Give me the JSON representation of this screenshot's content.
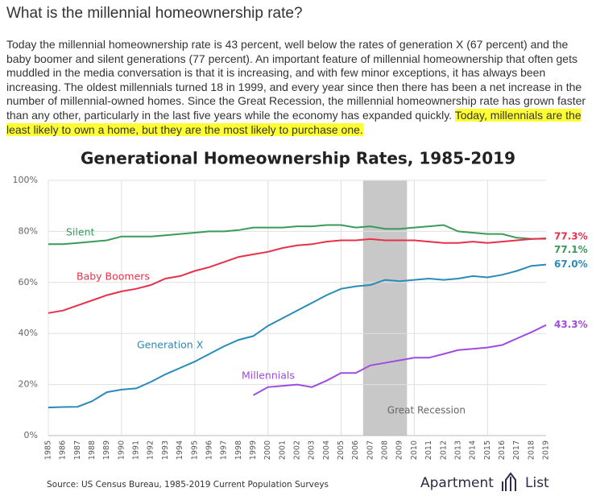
{
  "heading": "What is the millennial homeownership rate?",
  "paragraph": {
    "text": "Today the millennial homeownership rate is 43 percent, well below the rates of generation X (67 percent) and the baby boomer and silent generations (77 percent). An important feature of millennial homeownership that often gets muddled in the media conversation is that it is increasing, and with few minor exceptions, it has always been increasing. The oldest millennials turned 18 in 1999, and every year since then there has been a net increase in the number of millennial-owned homes. Since the Great Recession, the millennial homeownership rate has grown faster than any other, particularly in the last five years while the economy has expanded quickly. ",
    "highlight": "Today, millennials are the least likely to own a home, but they are the most likely to purchase one."
  },
  "chart_data": {
    "type": "line",
    "title": "Generational Homeownership Rates, 1985-2019",
    "source": "Source: US Census Bureau, 1985-2019 Current Population Surveys",
    "logo": [
      "Apartment",
      "List"
    ],
    "x": [
      1985,
      1986,
      1987,
      1988,
      1989,
      1990,
      1991,
      1992,
      1993,
      1994,
      1995,
      1996,
      1997,
      1998,
      1999,
      2000,
      2001,
      2002,
      2003,
      2004,
      2005,
      2006,
      2007,
      2008,
      2009,
      2010,
      2011,
      2012,
      2013,
      2014,
      2015,
      2016,
      2017,
      2018,
      2019
    ],
    "xlim": [
      1985,
      2019
    ],
    "xticks": [
      1985,
      1986,
      1987,
      1988,
      1989,
      1990,
      1991,
      1992,
      1993,
      1994,
      1995,
      1996,
      1997,
      1998,
      1999,
      2000,
      2001,
      2002,
      2003,
      2004,
      2005,
      2006,
      2007,
      2008,
      2009,
      2010,
      2011,
      2012,
      2013,
      2014,
      2015,
      2016,
      2017,
      2018,
      2019
    ],
    "ylim": [
      0,
      100
    ],
    "yticks": [
      {
        "value": 0,
        "label": "0%"
      },
      {
        "value": 20,
        "label": "20%"
      },
      {
        "value": 40,
        "label": "40%"
      },
      {
        "value": 60,
        "label": "60%"
      },
      {
        "value": 80,
        "label": "80%"
      },
      {
        "value": 100,
        "label": "100%"
      }
    ],
    "grid": true,
    "shaded_region": {
      "label": "Great Recession",
      "start": 2007,
      "end": 2009,
      "color": "#c8c8c8"
    },
    "series": [
      {
        "name": "Silent",
        "color": "#3a9a5b",
        "values": [
          75,
          75,
          75.5,
          76,
          76.5,
          78,
          78,
          78,
          78.5,
          79,
          79.5,
          80,
          80,
          80.5,
          81.5,
          81.5,
          81.5,
          82,
          82,
          82.5,
          82.5,
          81.5,
          82,
          81,
          81,
          81.5,
          82,
          82.5,
          80,
          79.5,
          79,
          79,
          77.5,
          77.1,
          77.1
        ],
        "value_labels": [
          null,
          null,
          null,
          null,
          null,
          null,
          null,
          null,
          null,
          null,
          null,
          null,
          null,
          null,
          null,
          null,
          null,
          null,
          null,
          null,
          null,
          null,
          null,
          null,
          null,
          null,
          null,
          null,
          null,
          null,
          null,
          null,
          null,
          null,
          "77.1%"
        ]
      },
      {
        "name": "Baby Boomers",
        "color": "#e8304a",
        "values": [
          48,
          49,
          51,
          53,
          55,
          56.5,
          57.5,
          59,
          61.5,
          62.5,
          64.5,
          66,
          68,
          70,
          71,
          72,
          73.5,
          74.5,
          75,
          76,
          76.5,
          76.5,
          77,
          76.5,
          76.5,
          76.5,
          76,
          75.5,
          75.5,
          76,
          75.5,
          76,
          76.5,
          77,
          77.3
        ],
        "value_labels": [
          null,
          null,
          null,
          null,
          null,
          null,
          null,
          null,
          null,
          null,
          null,
          null,
          null,
          null,
          null,
          null,
          null,
          null,
          null,
          null,
          null,
          null,
          null,
          null,
          null,
          null,
          null,
          null,
          null,
          null,
          null,
          null,
          null,
          null,
          "77.3%"
        ]
      },
      {
        "name": "Generation X",
        "color": "#2a8ab8",
        "values": [
          11,
          11.2,
          11.3,
          13.5,
          17,
          18,
          18.5,
          21,
          24,
          26.5,
          29,
          32,
          35,
          37.5,
          39,
          43,
          46,
          49,
          52,
          55,
          57.5,
          58.5,
          59,
          61,
          60.5,
          61,
          61.5,
          61,
          61.5,
          62.5,
          62,
          63,
          64.5,
          66.5,
          67
        ],
        "value_labels": [
          null,
          null,
          null,
          null,
          null,
          null,
          null,
          null,
          null,
          null,
          null,
          null,
          null,
          null,
          null,
          null,
          null,
          null,
          null,
          null,
          null,
          null,
          null,
          null,
          null,
          null,
          null,
          null,
          null,
          null,
          null,
          null,
          null,
          null,
          "67.0%"
        ]
      },
      {
        "name": "Millennials",
        "color": "#a04be0",
        "values": [
          null,
          null,
          null,
          null,
          null,
          null,
          null,
          null,
          null,
          null,
          null,
          null,
          null,
          null,
          15.8,
          19,
          19.5,
          20,
          19,
          21.5,
          24.5,
          24.5,
          27.5,
          28.5,
          29.5,
          30.5,
          30.5,
          32,
          33.5,
          34,
          34.5,
          35.5,
          38,
          40.5,
          43.3
        ],
        "value_labels": [
          null,
          null,
          null,
          null,
          null,
          null,
          null,
          null,
          null,
          null,
          null,
          null,
          null,
          null,
          null,
          null,
          null,
          null,
          null,
          null,
          null,
          null,
          null,
          null,
          null,
          null,
          null,
          null,
          null,
          null,
          null,
          null,
          null,
          null,
          "43.3%"
        ]
      }
    ]
  }
}
